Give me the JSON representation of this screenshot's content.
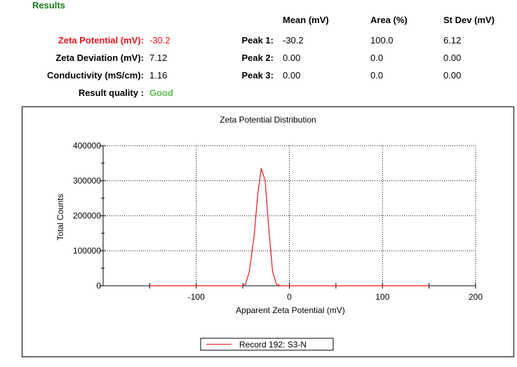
{
  "results": {
    "title": "Results",
    "headers": {
      "mean": "Mean (mV)",
      "area": "Area (%)",
      "stdev": "St Dev (mV)"
    },
    "left": [
      {
        "label": "Zeta Potential (mV):",
        "value": "-30.2",
        "color": "#e8141b"
      },
      {
        "label": "Zeta Deviation (mV):",
        "value": "7.12"
      },
      {
        "label": "Conductivity (mS/cm):",
        "value": "1.16"
      }
    ],
    "quality": {
      "label": "Result quality :",
      "value": "Good",
      "color": "#5bbf4a"
    },
    "peaks": [
      {
        "label": "Peak 1:",
        "mean": "-30.2",
        "area": "100.0",
        "stdev": "6.12"
      },
      {
        "label": "Peak 2:",
        "mean": "0.00",
        "area": "0.0",
        "stdev": "0.00"
      },
      {
        "label": "Peak 3:",
        "mean": "0.00",
        "area": "0.0",
        "stdev": "0.00"
      }
    ]
  },
  "chart_data": {
    "type": "line",
    "title": "Zeta Potential Distribution",
    "xlabel": "Apparent Zeta Potential (mV)",
    "ylabel": "Total Counts",
    "xlim": [
      -200,
      200
    ],
    "ylim": [
      0,
      400000
    ],
    "xticks": [
      -100,
      0,
      100,
      200
    ],
    "yticks": [
      0,
      100000,
      200000,
      300000,
      400000
    ],
    "grid": true,
    "legend_position": "bottom-center",
    "series": [
      {
        "name": "Record 192: S3-N",
        "color": "#e8141b",
        "x": [
          -150,
          -50,
          -47,
          -43,
          -38,
          -34,
          -30.2,
          -26,
          -22,
          -18,
          -14,
          -10,
          150
        ],
        "y": [
          0,
          0,
          5000,
          40000,
          140000,
          260000,
          335000,
          300000,
          160000,
          40000,
          5000,
          0,
          0
        ]
      }
    ]
  }
}
